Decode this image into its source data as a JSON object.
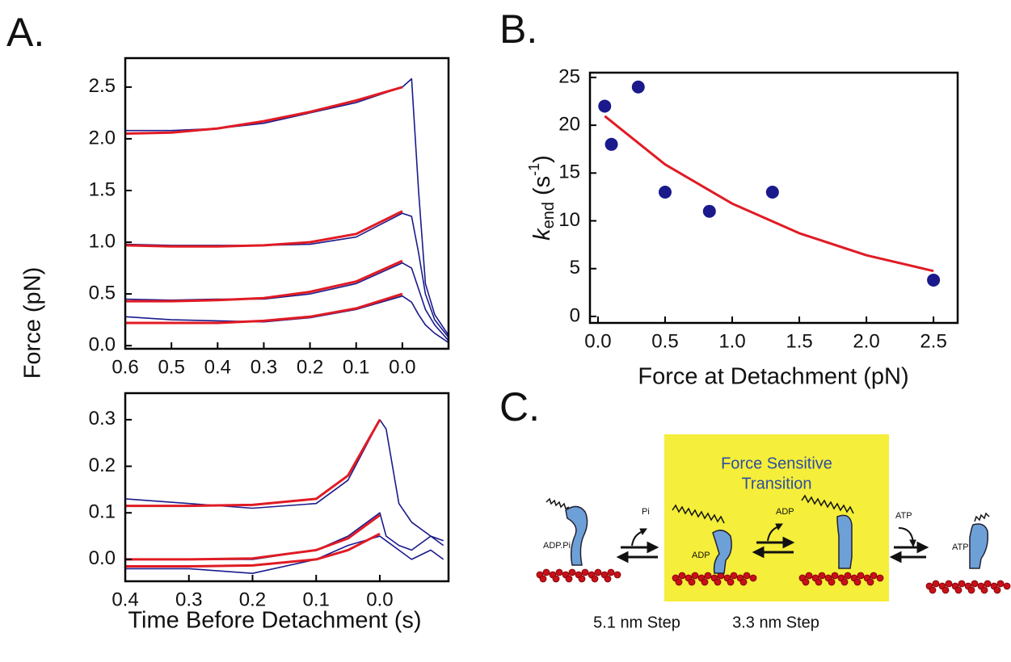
{
  "panel_labels": [
    "A.",
    "B.",
    "C."
  ],
  "chart_data": [
    {
      "type": "line",
      "ylabel": "Force (pN)",
      "xlim": [
        0.6,
        -0.1
      ],
      "ylim": [
        -0.03,
        2.78
      ],
      "xticks": [
        0.6,
        0.5,
        0.4,
        0.3,
        0.2,
        0.1,
        {
          "value": 0,
          "label": "0.0"
        }
      ],
      "yticks": [
        {
          "value": 0,
          "label": "0.0"
        },
        0.5,
        {
          "value": 1,
          "label": "1.0"
        },
        1.5,
        {
          "value": 2,
          "label": "2.0"
        },
        2.5
      ],
      "series": [
        {
          "color": "#1a1a8c",
          "x": [
            0.6,
            0.5,
            0.4,
            0.3,
            0.2,
            0.1,
            0,
            -0.02,
            -0.035,
            -0.05,
            -0.07,
            -0.1
          ],
          "values": [
            2.08,
            2.08,
            2.1,
            2.15,
            2.25,
            2.35,
            2.5,
            2.58,
            1.5,
            0.6,
            0.3,
            0.1
          ]
        },
        {
          "color": "#1a1a8c",
          "x": [
            0.6,
            0.5,
            0.4,
            0.3,
            0.2,
            0.1,
            0,
            -0.02,
            -0.035,
            -0.05,
            -0.07,
            -0.1
          ],
          "values": [
            0.98,
            0.97,
            0.97,
            0.97,
            0.98,
            1.05,
            1.28,
            1.25,
            0.9,
            0.5,
            0.25,
            0.08
          ]
        },
        {
          "color": "#1a1a8c",
          "x": [
            0.6,
            0.5,
            0.4,
            0.3,
            0.2,
            0.1,
            0,
            -0.02,
            -0.035,
            -0.05,
            -0.07,
            -0.1
          ],
          "values": [
            0.45,
            0.44,
            0.45,
            0.45,
            0.5,
            0.6,
            0.8,
            0.75,
            0.55,
            0.35,
            0.2,
            0.05
          ]
        },
        {
          "color": "#1a1a8c",
          "x": [
            0.6,
            0.5,
            0.4,
            0.3,
            0.2,
            0.1,
            0,
            -0.02,
            -0.035,
            -0.05,
            -0.07,
            -0.1
          ],
          "values": [
            0.28,
            0.25,
            0.24,
            0.23,
            0.27,
            0.35,
            0.48,
            0.42,
            0.3,
            0.2,
            0.12,
            0.03
          ]
        },
        {
          "color": "#e01b24",
          "x": [
            0.6,
            0.5,
            0.4,
            0.3,
            0.2,
            0.1,
            0
          ],
          "values": [
            2.05,
            2.06,
            2.1,
            2.17,
            2.26,
            2.37,
            2.5
          ]
        },
        {
          "color": "#e01b24",
          "x": [
            0.6,
            0.5,
            0.4,
            0.3,
            0.2,
            0.1,
            0
          ],
          "values": [
            0.97,
            0.96,
            0.96,
            0.97,
            1.0,
            1.08,
            1.3
          ]
        },
        {
          "color": "#e01b24",
          "x": [
            0.6,
            0.5,
            0.4,
            0.3,
            0.2,
            0.1,
            0
          ],
          "values": [
            0.43,
            0.43,
            0.44,
            0.46,
            0.52,
            0.62,
            0.82
          ]
        },
        {
          "color": "#e01b24",
          "x": [
            0.6,
            0.5,
            0.4,
            0.3,
            0.2,
            0.1,
            0
          ],
          "values": [
            0.22,
            0.22,
            0.22,
            0.24,
            0.28,
            0.36,
            0.5
          ]
        }
      ]
    },
    {
      "type": "line",
      "xlabel": "Time Before Detachment (s)",
      "xlim": [
        0.4,
        -0.108
      ],
      "ylim": [
        -0.047,
        0.357
      ],
      "xticks": [
        0.4,
        0.3,
        0.2,
        0.1,
        {
          "value": 0,
          "label": "0.0"
        }
      ],
      "yticks": [
        {
          "value": 0,
          "label": "0.0"
        },
        0.1,
        0.2,
        0.3
      ],
      "series": [
        {
          "color": "#1a1a8c",
          "x": [
            0.4,
            0.3,
            0.2,
            0.1,
            0.05,
            0,
            -0.01,
            -0.03,
            -0.05,
            -0.08,
            -0.1
          ],
          "values": [
            0.13,
            0.12,
            0.11,
            0.12,
            0.17,
            0.3,
            0.28,
            0.12,
            0.08,
            0.05,
            0.04
          ]
        },
        {
          "color": "#1a1a8c",
          "x": [
            0.4,
            0.3,
            0.2,
            0.1,
            0.05,
            0,
            -0.01,
            -0.03,
            -0.05,
            -0.08,
            -0.1
          ],
          "values": [
            0,
            0,
            0,
            0.02,
            0.05,
            0.1,
            0.05,
            0.03,
            0.02,
            0.05,
            0.03
          ]
        },
        {
          "color": "#1a1a8c",
          "x": [
            0.4,
            0.3,
            0.2,
            0.1,
            0.05,
            0,
            -0.01,
            -0.03,
            -0.05,
            -0.08,
            -0.1
          ],
          "values": [
            -0.02,
            -0.02,
            -0.03,
            0,
            0.03,
            0.05,
            0.04,
            0.02,
            0,
            0.02,
            0
          ]
        },
        {
          "color": "#e01b24",
          "x": [
            0.4,
            0.3,
            0.2,
            0.1,
            0.05,
            0
          ],
          "values": [
            0.115,
            0.115,
            0.117,
            0.13,
            0.18,
            0.3
          ]
        },
        {
          "color": "#e01b24",
          "x": [
            0.4,
            0.3,
            0.2,
            0.1,
            0.05,
            0
          ],
          "values": [
            0,
            0,
            0.002,
            0.02,
            0.045,
            0.095
          ]
        },
        {
          "color": "#e01b24",
          "x": [
            0.4,
            0.3,
            0.2,
            0.1,
            0.05,
            0
          ],
          "values": [
            -0.015,
            -0.015,
            -0.013,
            0,
            0.02,
            0.055
          ]
        }
      ]
    },
    {
      "type": "scatter",
      "xlabel": "Force at Detachment (pN)",
      "ylabel": [
        "k",
        "end",
        "(s",
        "-1",
        ")"
      ],
      "xlim": [
        -0.06,
        2.68
      ],
      "ylim": [
        -0.68,
        25.5
      ],
      "xticks": [
        {
          "value": 0,
          "label": "0.0"
        },
        0.5,
        {
          "value": 1,
          "label": "1.0"
        },
        1.5,
        {
          "value": 2,
          "label": "2.0"
        },
        2.5
      ],
      "yticks": [
        0,
        5,
        10,
        15,
        20,
        25
      ],
      "series": [
        {
          "type": "scatter",
          "color": "#1a1a8c",
          "x": [
            0.05,
            0.1,
            0.3,
            0.5,
            0.83,
            1.3,
            2.5
          ],
          "values": [
            22,
            18,
            24,
            13,
            11,
            13,
            3.8
          ]
        },
        {
          "type": "line",
          "color": "#e01b24",
          "x": [
            0.05,
            0.5,
            1,
            1.5,
            2,
            2.5
          ],
          "values": [
            20.96,
            15.9,
            11.8,
            8.7,
            6.4,
            4.75
          ]
        }
      ]
    }
  ],
  "diagram": {
    "box_title": [
      "Force Sensitive",
      "Transition"
    ],
    "arrow_labels": [
      "Pi",
      "ADP",
      "ATP"
    ],
    "states": [
      "ADP.Pi",
      "ADP",
      "ATP"
    ],
    "steps": [
      "5.1 nm Step",
      "3.3 nm Step"
    ]
  }
}
